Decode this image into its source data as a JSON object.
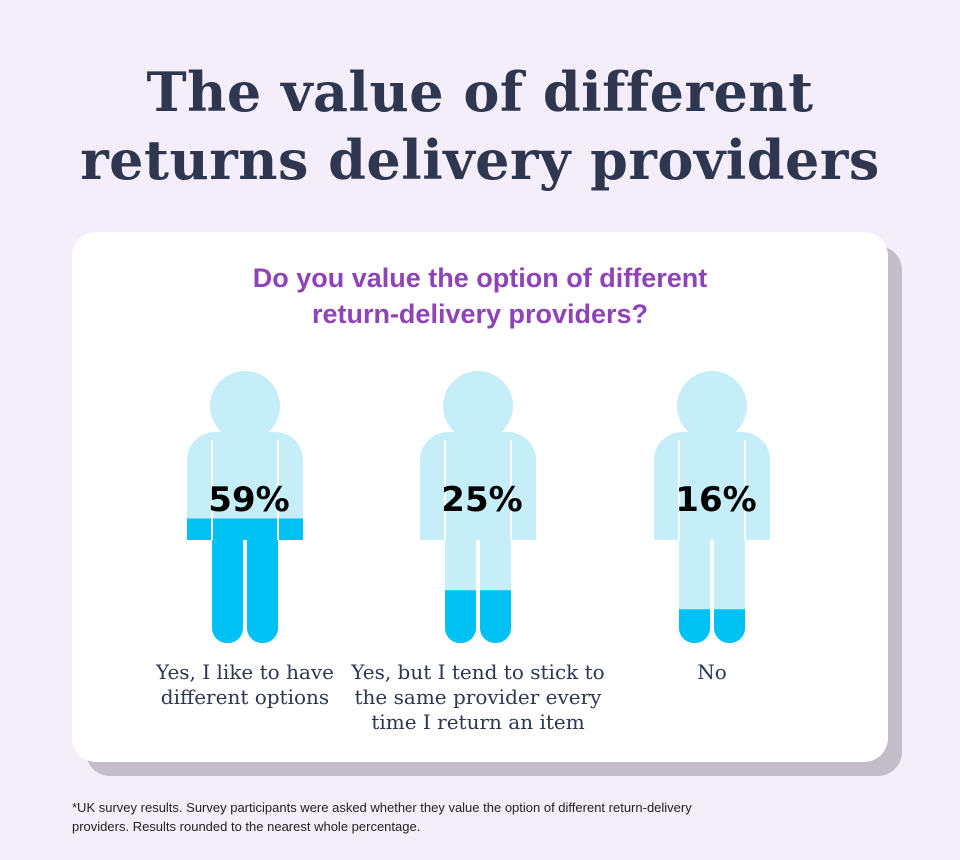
{
  "title_line1": "The value of different",
  "title_line2": "returns delivery providers",
  "chart_data": {
    "type": "pictograph",
    "title": "Do you value the option of different return-delivery providers?",
    "categories": [
      "Yes, I like to have different options",
      "Yes, but I tend to stick to the same provider every time I return an item",
      "No"
    ],
    "values": [
      59,
      25,
      16
    ],
    "value_labels": [
      "59%",
      "25%",
      "16%"
    ],
    "label_lines": [
      [
        "Yes, I like to have",
        "different options"
      ],
      [
        "Yes, but I tend to stick to",
        "the same provider every",
        "time I return an item"
      ],
      [
        "No"
      ]
    ],
    "colors": {
      "fill": "#00c1f3",
      "empty": "#c6eef9"
    }
  },
  "question_line1": "Do you value the option of different",
  "question_line2": "return-delivery providers?",
  "footnote_line1": "*UK survey results. Survey participants were asked whether they value the option of different return-delivery",
  "footnote_line2": "providers. Results rounded to the nearest whole percentage."
}
